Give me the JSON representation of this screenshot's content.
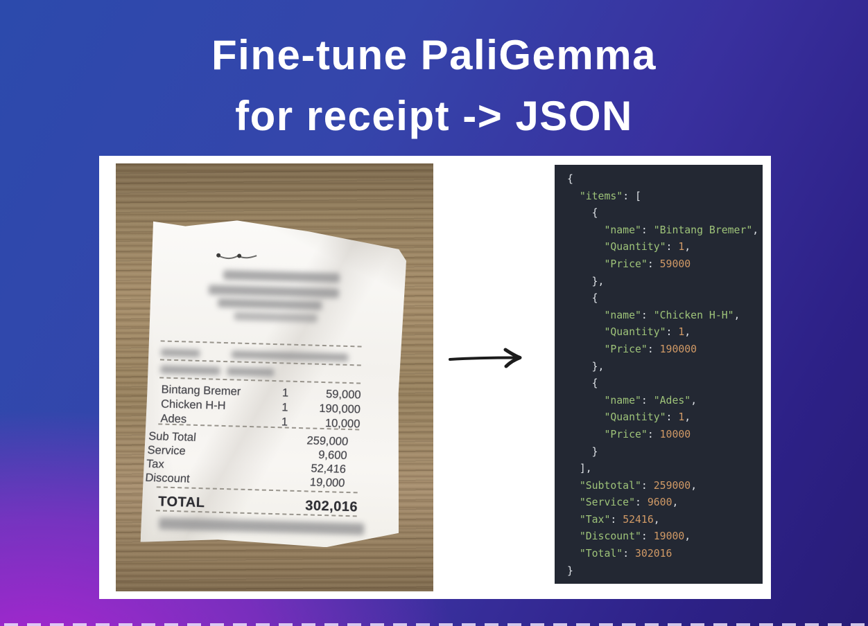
{
  "title": {
    "line1": "Fine-tune PaliGemma",
    "line2": "for receipt -> JSON"
  },
  "receipt": {
    "items": [
      {
        "name": "Bintang Bremer",
        "qty": "1",
        "price": "59,000"
      },
      {
        "name": "Chicken H-H",
        "qty": "1",
        "price": "190,000"
      },
      {
        "name": "Ades",
        "qty": "1",
        "price": "10,000"
      }
    ],
    "summary": [
      {
        "label": "Sub Total",
        "value": "259,000"
      },
      {
        "label": "Service",
        "value": "9,600"
      },
      {
        "label": "Tax",
        "value": "52,416"
      },
      {
        "label": "Discount",
        "value": "19,000"
      }
    ],
    "total": {
      "label": "TOTAL",
      "value": "302,016"
    }
  },
  "code_panel": {
    "lines": [
      "{",
      "  \"items\": [",
      "    {",
      "      \"name\": \"Bintang Bremer\",",
      "      \"Quantity\": 1,",
      "      \"Price\": 59000",
      "    },",
      "    {",
      "      \"name\": \"Chicken H-H\",",
      "      \"Quantity\": 1,",
      "      \"Price\": 190000",
      "    },",
      "    {",
      "      \"name\": \"Ades\",",
      "      \"Quantity\": 1,",
      "      \"Price\": 10000",
      "    }",
      "  ],",
      "  \"Subtotal\": 259000,",
      "  \"Service\": 9600,",
      "  \"Tax\": 52416,",
      "  \"Discount\": 19000,",
      "  \"Total\": 302016",
      "}"
    ]
  },
  "icons": {
    "arrow": "right-arrow-icon"
  },
  "colors": {
    "bg_blue": "#2c4aac",
    "bg_indigo": "#281c77",
    "bg_magenta": "#a228cc",
    "code_bg": "#232833",
    "code_string": "#9ec379",
    "code_number": "#d19a66",
    "code_punct": "#dde1e6"
  }
}
